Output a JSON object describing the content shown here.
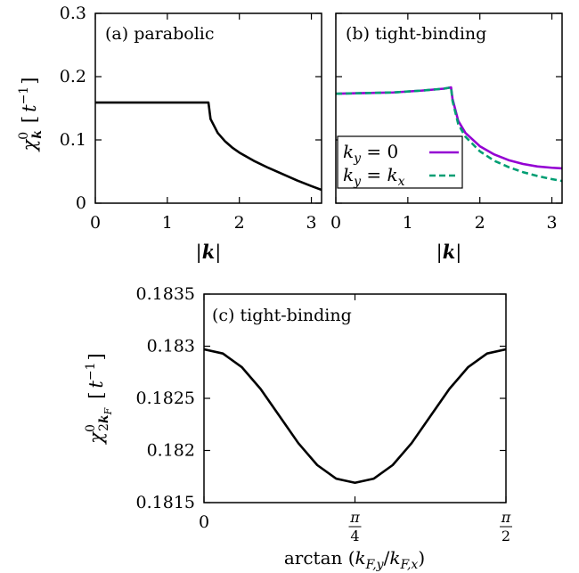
{
  "chart_data": [
    {
      "id": "a",
      "type": "line",
      "title": "(a) parabolic",
      "xlabel": "|k|",
      "ylabel": "χ⁰_k [t⁻¹]",
      "xlim": [
        0,
        3.14159
      ],
      "ylim": [
        0,
        0.3
      ],
      "xticks": [
        0,
        1,
        2,
        3
      ],
      "yticks": [
        0,
        0.1,
        0.2,
        0.3
      ],
      "ytick_labels": [
        "0",
        "0.1",
        "0.2",
        "0.3"
      ],
      "series": [
        {
          "color": "#000000",
          "dash": "",
          "x": [
            0,
            0.5,
            1.0,
            1.5,
            1.571,
            1.6,
            1.7,
            1.8,
            1.9,
            2.0,
            2.2,
            2.4,
            2.6,
            2.8,
            3.0,
            3.14159
          ],
          "y": [
            0.159,
            0.159,
            0.159,
            0.159,
            0.159,
            0.133,
            0.111,
            0.098,
            0.088,
            0.08,
            0.067,
            0.056,
            0.046,
            0.036,
            0.027,
            0.021
          ]
        }
      ]
    },
    {
      "id": "b",
      "type": "line",
      "title": "(b) tight-binding",
      "xlabel": "|k|",
      "xlim": [
        0,
        3.14159
      ],
      "ylim": [
        0,
        0.3
      ],
      "xticks": [
        0,
        1,
        2,
        3
      ],
      "yticks": [
        0,
        0.1,
        0.2,
        0.3
      ],
      "legend": {
        "position": "bottom-left",
        "entries": [
          {
            "label": "k_y = 0",
            "color": "#9400d3",
            "dash": ""
          },
          {
            "label": "k_y = k_x",
            "color": "#009e73",
            "dash": "7,4"
          }
        ]
      },
      "series": [
        {
          "name": "k_y = 0",
          "color": "#9400d3",
          "dash": "",
          "x": [
            0,
            0.4,
            0.8,
            1.2,
            1.5,
            1.6,
            1.62,
            1.7,
            1.8,
            2.0,
            2.2,
            2.4,
            2.6,
            2.8,
            3.0,
            3.14159
          ],
          "y": [
            0.173,
            0.174,
            0.175,
            0.178,
            0.181,
            0.183,
            0.165,
            0.13,
            0.111,
            0.09,
            0.077,
            0.068,
            0.062,
            0.058,
            0.056,
            0.055
          ]
        },
        {
          "name": "k_y = k_x",
          "color": "#009e73",
          "dash": "7,4",
          "x": [
            0,
            0.4,
            0.8,
            1.2,
            1.5,
            1.6,
            1.62,
            1.7,
            1.8,
            2.0,
            2.2,
            2.4,
            2.6,
            2.8,
            3.0,
            3.14159
          ],
          "y": [
            0.173,
            0.174,
            0.175,
            0.178,
            0.181,
            0.183,
            0.162,
            0.125,
            0.105,
            0.082,
            0.067,
            0.057,
            0.049,
            0.043,
            0.038,
            0.035
          ]
        }
      ]
    },
    {
      "id": "c",
      "type": "line",
      "title": "(c) tight-binding",
      "xlabel": "arctan (k_F,y / k_F,x)",
      "ylabel": "χ⁰_2k_F [t⁻¹]",
      "xlim": [
        0,
        1.5708
      ],
      "ylim": [
        0.1815,
        0.1835
      ],
      "xticks": [
        0,
        0.7854,
        1.5708
      ],
      "xtick_labels": [
        "0",
        "π/4",
        "π/2"
      ],
      "yticks": [
        0.1815,
        0.182,
        0.1825,
        0.183,
        0.1835
      ],
      "ytick_labels": [
        "0.1815",
        "0.182",
        "0.1825",
        "0.183",
        "0.1835"
      ],
      "series": [
        {
          "color": "#000000",
          "dash": "",
          "x": [
            0,
            0.0982,
            0.1963,
            0.2945,
            0.3927,
            0.4909,
            0.589,
            0.6872,
            0.7854,
            0.8836,
            0.9817,
            1.0799,
            1.1781,
            1.2763,
            1.3744,
            1.4726,
            1.5708
          ],
          "y": [
            0.18297,
            0.18293,
            0.1828,
            0.18259,
            0.18233,
            0.18207,
            0.18186,
            0.18173,
            0.18169,
            0.18173,
            0.18186,
            0.18207,
            0.18233,
            0.18259,
            0.1828,
            0.18293,
            0.18297
          ]
        }
      ]
    }
  ]
}
